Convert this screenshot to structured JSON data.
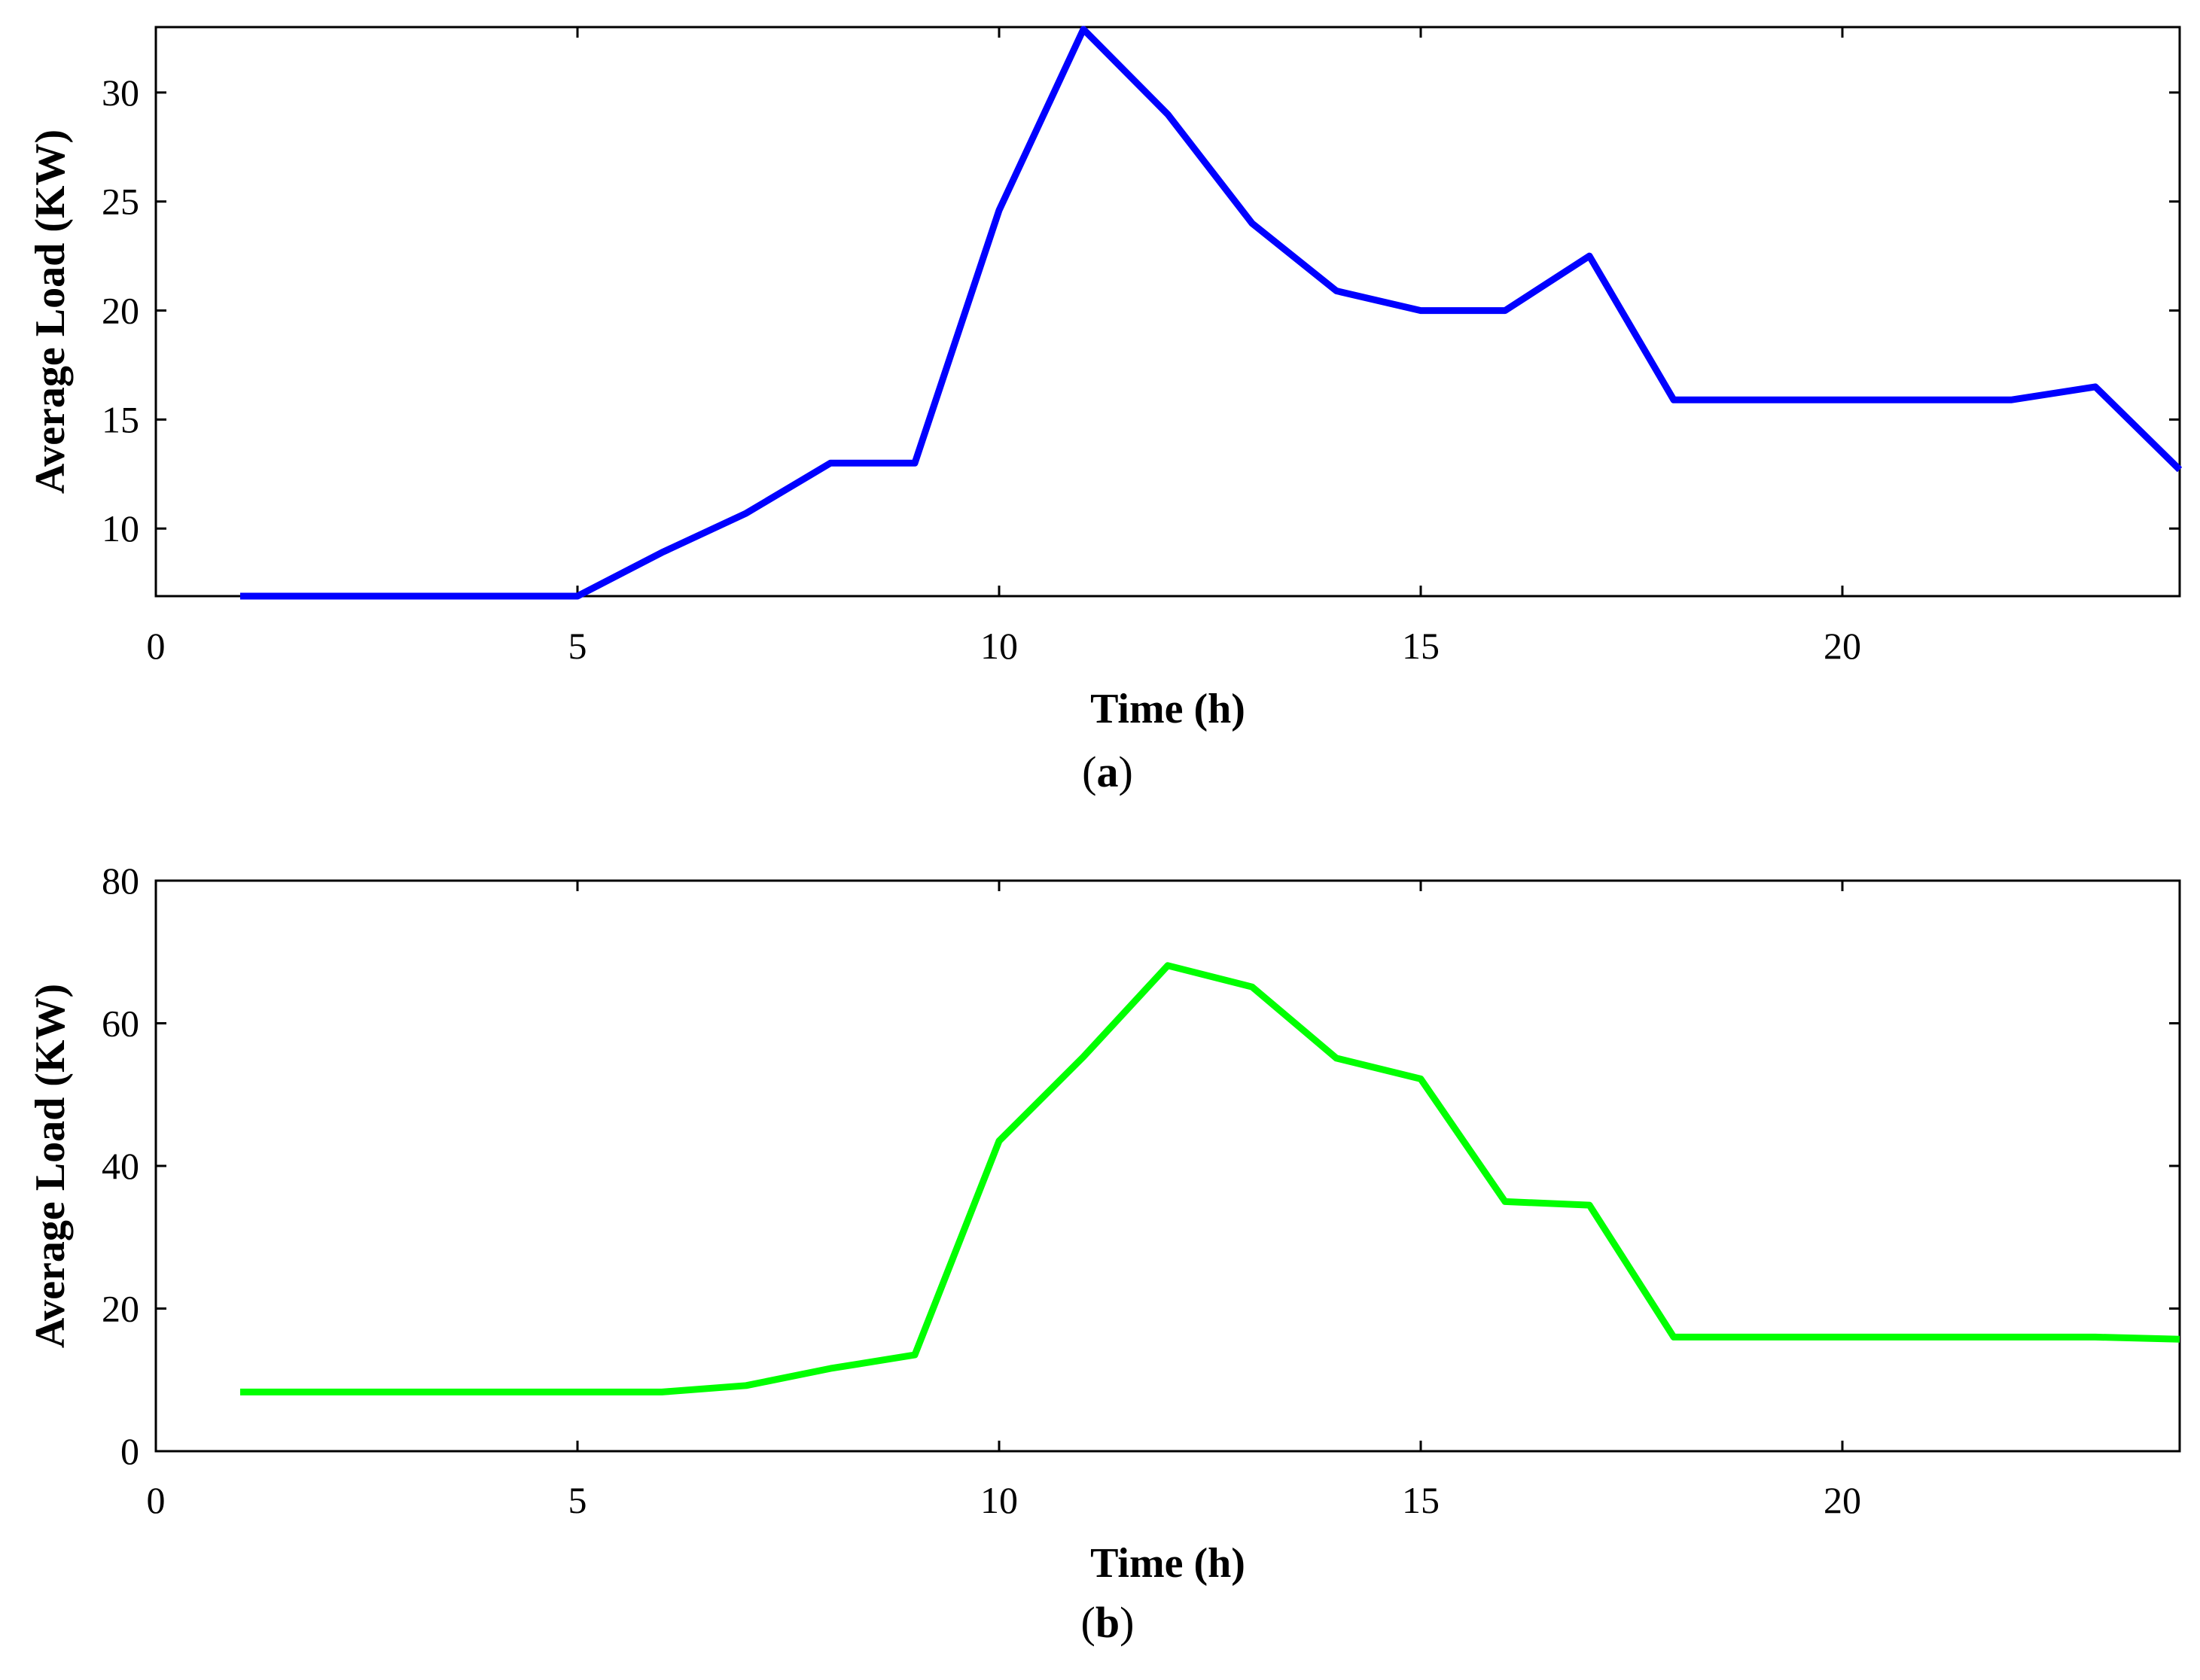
{
  "chart_data": [
    {
      "type": "line",
      "caption_letter": "a",
      "xlabel": "Time (h)",
      "ylabel": "Average Load (KW)",
      "xlim": [
        0,
        24
      ],
      "ylim": [
        6.9,
        33
      ],
      "x_ticks": [
        0,
        5,
        10,
        15,
        20
      ],
      "y_ticks": [
        10,
        15,
        20,
        25,
        30
      ],
      "grid": false,
      "series": [
        {
          "color": "#0000ff",
          "x": [
            1,
            2,
            3,
            4,
            5,
            6,
            7,
            8,
            9,
            10,
            11,
            12,
            13,
            14,
            15,
            16,
            17,
            18,
            19,
            20,
            21,
            22,
            23,
            24
          ],
          "y": [
            6.9,
            6.9,
            6.9,
            6.9,
            6.9,
            8.9,
            10.7,
            13.0,
            13.0,
            24.6,
            32.9,
            29.0,
            24.0,
            20.9,
            20.0,
            20.0,
            22.5,
            15.9,
            15.9,
            15.9,
            15.9,
            15.9,
            16.5,
            12.7
          ]
        }
      ]
    },
    {
      "type": "line",
      "caption_letter": "b",
      "xlabel": "Time (h)",
      "ylabel": "Average Load (KW)",
      "xlim": [
        0,
        24
      ],
      "ylim": [
        0,
        80
      ],
      "x_ticks": [
        0,
        5,
        10,
        15,
        20
      ],
      "y_ticks": [
        0,
        20,
        40,
        60,
        80
      ],
      "grid": false,
      "series": [
        {
          "color": "#00ff00",
          "x": [
            1,
            2,
            3,
            4,
            5,
            6,
            7,
            8,
            9,
            10,
            11,
            12,
            13,
            14,
            15,
            16,
            17,
            18,
            19,
            20,
            21,
            22,
            23,
            24
          ],
          "y": [
            8.3,
            8.3,
            8.3,
            8.3,
            8.3,
            8.3,
            9.2,
            11.6,
            13.5,
            43.5,
            55.3,
            68.1,
            65.1,
            55.1,
            52.2,
            35.0,
            34.5,
            16.0,
            16.0,
            16.0,
            16.0,
            16.0,
            16.0,
            15.7
          ]
        }
      ]
    }
  ]
}
